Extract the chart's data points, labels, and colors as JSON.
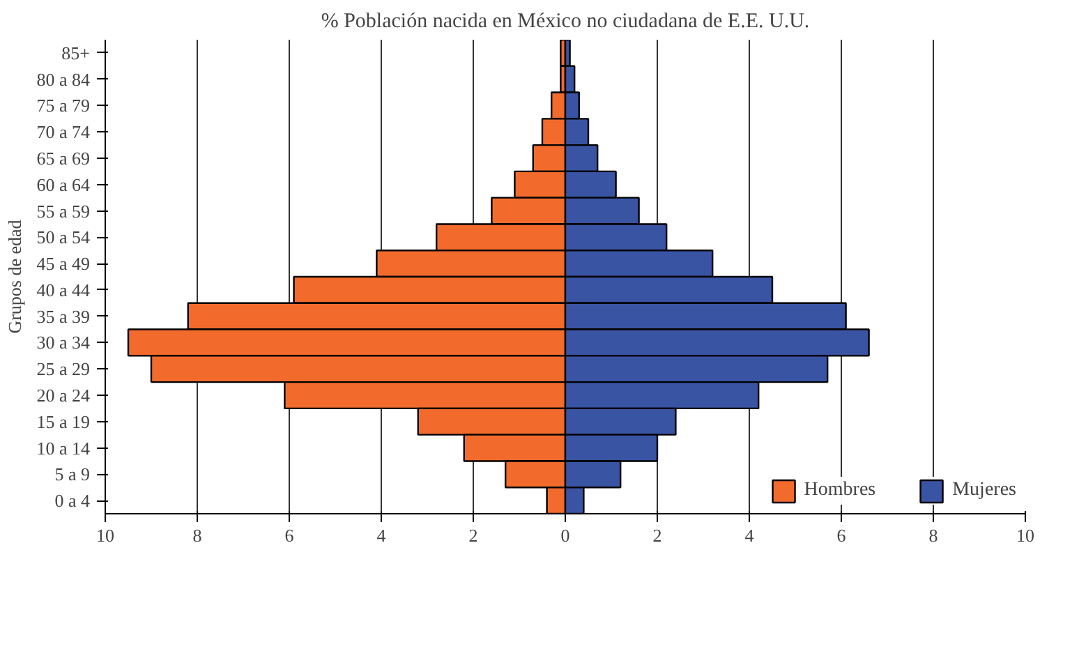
{
  "chart_data": {
    "type": "bar",
    "orientation": "horizontal",
    "title": "% Población nacida en México no ciudadana de E.E. U.U.",
    "ylabel": "Grupos de edad",
    "categories": [
      "85+",
      "80 a 84",
      "75 a 79",
      "70 a 74",
      "65 a 69",
      "60 a 64",
      "55 a 59",
      "50 a 54",
      "45 a 49",
      "40 a 44",
      "35 a 39",
      "30 a 34",
      "25 a 29",
      "20 a 24",
      "15 a 19",
      "10 a 14",
      "5 a 9",
      "0 a 4"
    ],
    "series": [
      {
        "name": "Hombres",
        "color": "#f26b2c",
        "values": [
          -0.1,
          -0.1,
          -0.3,
          -0.5,
          -0.7,
          -1.1,
          -1.6,
          -2.8,
          -4.1,
          -5.9,
          -8.2,
          -9.5,
          -9.0,
          -6.1,
          -3.2,
          -2.2,
          -1.3,
          -0.4
        ]
      },
      {
        "name": "Mujeres",
        "color": "#3a54a4",
        "values": [
          0.1,
          0.2,
          0.3,
          0.5,
          0.7,
          1.1,
          1.6,
          2.2,
          3.2,
          4.5,
          6.1,
          6.6,
          5.7,
          4.2,
          2.4,
          2.0,
          1.2,
          0.4
        ]
      }
    ],
    "xlim": [
      -10,
      10
    ],
    "xticks": [
      {
        "value": -10,
        "label": "10"
      },
      {
        "value": -8,
        "label": "8"
      },
      {
        "value": -6,
        "label": "6"
      },
      {
        "value": -4,
        "label": "4"
      },
      {
        "value": -2,
        "label": "2"
      },
      0,
      2,
      4,
      6,
      8,
      10
    ],
    "grid": "x",
    "legend": "bottom",
    "stacked": true
  }
}
